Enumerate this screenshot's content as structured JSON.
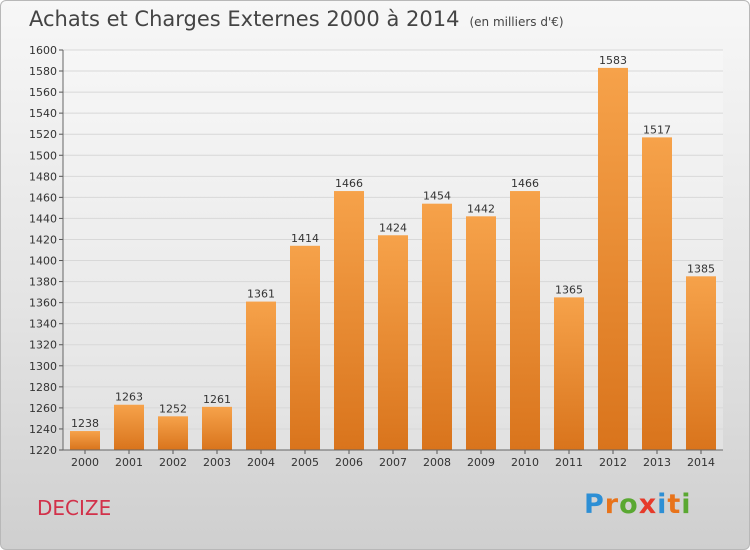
{
  "title": "Achats et Charges Externes 2000 à 2014",
  "unit": "(en milliers d'€)",
  "town": "DECIZE",
  "brand": {
    "letters": [
      "P",
      "r",
      "o",
      "x",
      "i",
      "t",
      "i"
    ],
    "colors": [
      "#2d8fd5",
      "#e8731a",
      "#5aa832",
      "#e63a2a",
      "#2d8fd5",
      "#e8731a",
      "#5aa832"
    ]
  },
  "colors": {
    "bar_top": "#f6a24a",
    "bar_bottom": "#d9741c",
    "town": "#d2314a"
  },
  "chart_data": {
    "type": "bar",
    "title": "Achats et Charges Externes 2000 à 2014",
    "subtitle": "(en milliers d'€)",
    "categories": [
      "2000",
      "2001",
      "2002",
      "2003",
      "2004",
      "2005",
      "2006",
      "2007",
      "2008",
      "2009",
      "2010",
      "2011",
      "2012",
      "2013",
      "2014"
    ],
    "values": [
      1238,
      1263,
      1252,
      1261,
      1361,
      1414,
      1466,
      1424,
      1454,
      1442,
      1466,
      1365,
      1583,
      1517,
      1385
    ],
    "ylim": [
      1220,
      1600
    ],
    "ytick_step": 20,
    "grid": true
  }
}
